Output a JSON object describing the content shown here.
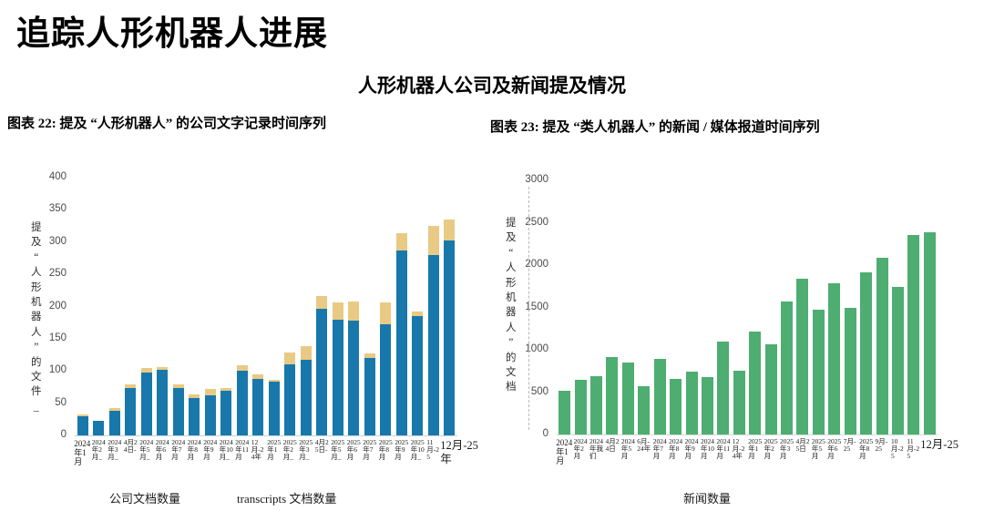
{
  "page": {
    "title": "追踪人形机器人进展",
    "subtitle": "人形机器人公司及新闻提及情况"
  },
  "chart_data": [
    {
      "id": "company-transcript-mentions",
      "type": "bar",
      "stacked": true,
      "caption": "图表 22: 提及 “人形机器人” 的公司文字记录时间序列",
      "ylabel": "提及“人形机器人”的文件_",
      "xlabel": "",
      "ylim": [
        0,
        400
      ],
      "ytick_step": 50,
      "grid": false,
      "legend_position": "bottom",
      "categories": [
        "2024年1月",
        "2024年2月_",
        "2024年3月_",
        "4月24日-",
        "2024年5月_",
        "2024年6月",
        "2024年7月",
        "2024年8月",
        "2024年9月",
        "2024年10月_",
        "2024年11月",
        "12月-24年",
        "2025年1月",
        "2025年2月_",
        "2025年3月_",
        "4月25日-",
        "2025年5月_",
        "2025年6月",
        "2025年7月",
        "2025年8月",
        "2025年9月",
        "2025年10月_",
        "11月-25",
        "12月-25年"
      ],
      "series": [
        {
          "name": "公司文档数量",
          "color": "#1878ab",
          "values": [
            30,
            23,
            38,
            74,
            97,
            102,
            74,
            58,
            62,
            69,
            101,
            88,
            83,
            110,
            117,
            196,
            179,
            178,
            120,
            172,
            287,
            185,
            280,
            303
          ]
        },
        {
          "name": "transcripts 文档数量",
          "color": "#e9ca84",
          "values": [
            2,
            0,
            4,
            5,
            7,
            4,
            5,
            6,
            10,
            4,
            8,
            7,
            3,
            19,
            22,
            20,
            27,
            30,
            7,
            34,
            27,
            7,
            45,
            32
          ]
        }
      ]
    },
    {
      "id": "news-media-mentions",
      "type": "bar",
      "stacked": false,
      "caption": "图表 23: 提及 “类人机器人” 的新闻 / 媒体报道时间序列",
      "ylabel": "提及“人形机器人”的文档",
      "xlabel": "",
      "ylim": [
        0,
        3000
      ],
      "ytick_step": 500,
      "grid": false,
      "legend_position": "bottom",
      "categories": [
        "2024年1月",
        "2024年2月",
        "2024年我们",
        "4月24日",
        "2024年5月",
        "6月-24年",
        "2024年7月",
        "2024年8月",
        "2024年9月",
        "2024年10月",
        "2024年11月",
        "12月-24年",
        "2025年1月",
        "2025年2月",
        "2025年3月",
        "4月25日",
        "2025年5月",
        "2025年6月",
        "7月-25",
        "2025年8月",
        "9月-25",
        "10月-25",
        "11月-25",
        "12月-25"
      ],
      "series": [
        {
          "name": "新闻数量",
          "color": "#4ead71",
          "values": [
            520,
            640,
            690,
            915,
            845,
            575,
            895,
            660,
            745,
            680,
            1100,
            750,
            1210,
            1060,
            1570,
            1840,
            1470,
            1780,
            1500,
            1910,
            2090,
            1740,
            2360,
            2390
          ]
        }
      ]
    }
  ]
}
